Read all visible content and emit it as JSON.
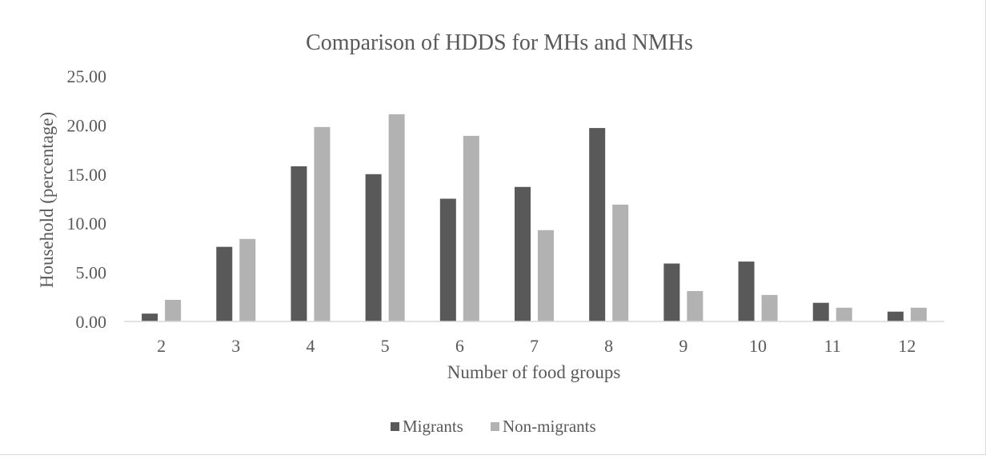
{
  "chart_data": {
    "type": "bar",
    "title": "Comparison of HDDS for MHs and NMHs",
    "xlabel": "Number of food groups",
    "ylabel": "Household (percentage)",
    "categories": [
      "2",
      "3",
      "4",
      "5",
      "6",
      "7",
      "8",
      "9",
      "10",
      "11",
      "12"
    ],
    "ylim": [
      0,
      25
    ],
    "y_ticks": [
      "0.00",
      "5.00",
      "10.00",
      "15.00",
      "20.00",
      "25.00"
    ],
    "grid": false,
    "legend_position": "bottom",
    "series": [
      {
        "name": "Migrants",
        "color": "#595959",
        "values": [
          0.8,
          7.6,
          15.8,
          15.0,
          12.5,
          13.7,
          19.7,
          5.9,
          6.1,
          1.9,
          1.0
        ]
      },
      {
        "name": "Non-migrants",
        "color": "#b2b2b2",
        "values": [
          2.2,
          8.4,
          19.8,
          21.1,
          18.9,
          9.3,
          11.9,
          3.1,
          2.7,
          1.4,
          1.4
        ]
      }
    ]
  }
}
